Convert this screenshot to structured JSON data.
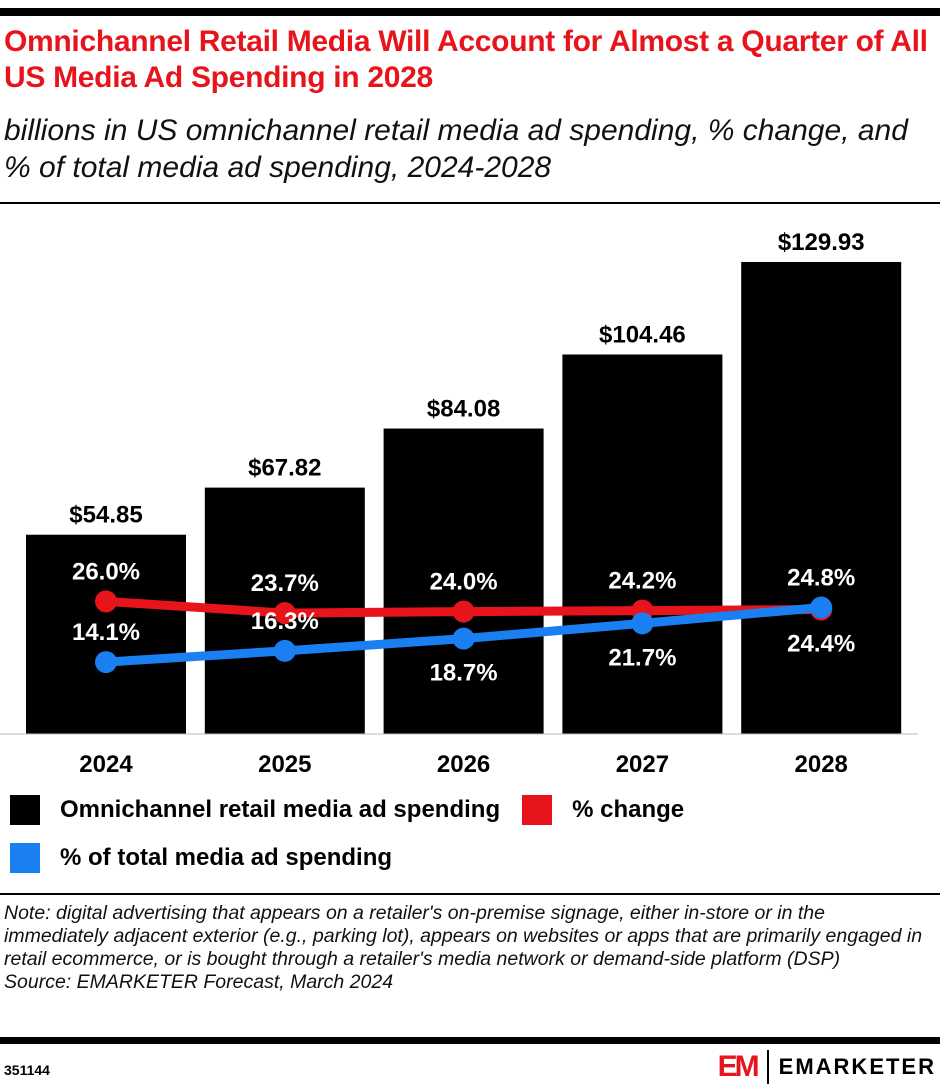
{
  "header": {
    "title": "Omnichannel Retail Media Will Account for Almost a Quarter of All US Media Ad Spending in 2028",
    "subtitle": "billions in US omnichannel retail media ad spending, % change, and % of total media ad spending, 2024-2028"
  },
  "chart_data": {
    "type": "bar",
    "categories": [
      "2024",
      "2025",
      "2026",
      "2027",
      "2028"
    ],
    "series": [
      {
        "name": "Omnichannel retail media ad spending",
        "type": "bar",
        "values": [
          54.85,
          67.82,
          84.08,
          104.46,
          129.93
        ],
        "labels": [
          "$54.85",
          "$67.82",
          "$84.08",
          "$104.46",
          "$129.93"
        ],
        "color": "#000000"
      },
      {
        "name": "% change",
        "type": "line",
        "values": [
          26.0,
          23.7,
          24.0,
          24.2,
          24.4
        ],
        "labels": [
          "26.0%",
          "23.7%",
          "24.0%",
          "24.2%",
          "24.4%"
        ],
        "color": "#e8141c"
      },
      {
        "name": "% of total media ad spending",
        "type": "line",
        "values": [
          14.1,
          16.3,
          18.7,
          21.7,
          24.8
        ],
        "labels": [
          "14.1%",
          "16.3%",
          "18.7%",
          "21.7%",
          "24.8%"
        ],
        "color": "#1a7ff0"
      }
    ],
    "legend": "bottom",
    "grid": false
  },
  "legend": {
    "items": [
      "Omnichannel retail media ad spending",
      "% change",
      "% of total media ad spending"
    ]
  },
  "footer": {
    "note": "Note: digital advertising that appears on a retailer's on-premise signage, either in-store or in the immediately adjacent exterior (e.g., parking lot), appears on websites or apps that are primarily engaged in retail ecommerce, or is bought through a retailer's media network or demand-side platform (DSP)",
    "source": "Source: EMARKETER Forecast, March 2024",
    "chart_id": "351144",
    "brand": "EMARKETER",
    "logo_mark": "EM"
  }
}
